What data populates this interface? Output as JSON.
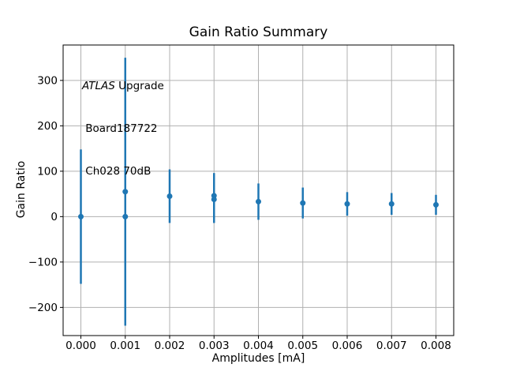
{
  "figure": {
    "background": "#ffffff"
  },
  "chart_data": {
    "type": "scatter",
    "subtype": "errorbar",
    "title": "Gain Ratio Summary",
    "xlabel": "Amplitudes [mA]",
    "ylabel": "Gain Ratio",
    "xlim": [
      -0.0004,
      0.0084
    ],
    "ylim": [
      -262,
      378
    ],
    "grid": true,
    "legend": "none",
    "marker_color": "#1f77b4",
    "grid_color": "#b0b0b0",
    "spine_color": "#000000",
    "x_ticks": [
      {
        "v": 0.0,
        "label": "0.000"
      },
      {
        "v": 0.001,
        "label": "0.001"
      },
      {
        "v": 0.002,
        "label": "0.002"
      },
      {
        "v": 0.003,
        "label": "0.003"
      },
      {
        "v": 0.004,
        "label": "0.004"
      },
      {
        "v": 0.005,
        "label": "0.005"
      },
      {
        "v": 0.006,
        "label": "0.006"
      },
      {
        "v": 0.007,
        "label": "0.007"
      },
      {
        "v": 0.008,
        "label": "0.008"
      }
    ],
    "y_ticks": [
      {
        "v": -200,
        "label": "−200"
      },
      {
        "v": -100,
        "label": "−100"
      },
      {
        "v": 0,
        "label": "0"
      },
      {
        "v": 100,
        "label": "100"
      },
      {
        "v": 200,
        "label": "200"
      },
      {
        "v": 300,
        "label": "300"
      }
    ],
    "points": [
      {
        "x": 0.0,
        "y": 0,
        "err": 148
      },
      {
        "x": 0.001,
        "y": 55,
        "err": 295
      },
      {
        "x": 0.001,
        "y": 0,
        "err": 240
      },
      {
        "x": 0.002,
        "y": 45,
        "err": 59
      },
      {
        "x": 0.003,
        "y": 46,
        "err": 50
      },
      {
        "x": 0.003,
        "y": 38,
        "err": 52
      },
      {
        "x": 0.004,
        "y": 33,
        "err": 40
      },
      {
        "x": 0.005,
        "y": 30,
        "err": 34
      },
      {
        "x": 0.006,
        "y": 28,
        "err": 26
      },
      {
        "x": 0.007,
        "y": 28,
        "err": 24
      },
      {
        "x": 0.008,
        "y": 26,
        "err": 22
      }
    ],
    "annotation": {
      "line1_italic": "ATLAS",
      "line1_rest": " Upgrade",
      "line2": " Board187722",
      "line3": " Ch028 70dB"
    }
  }
}
